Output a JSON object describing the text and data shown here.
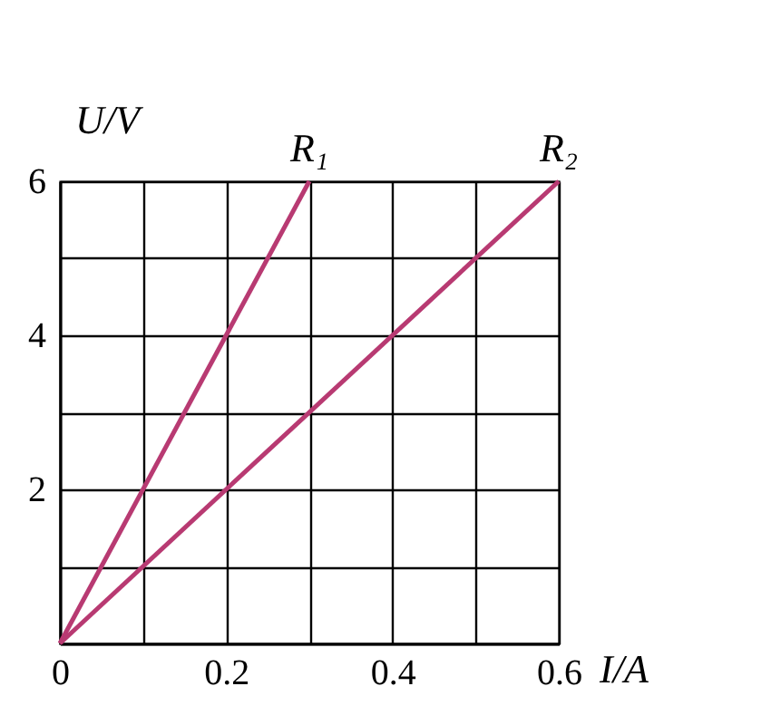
{
  "chart_data": {
    "type": "line",
    "xlabel": "I/A",
    "ylabel": "U/V",
    "series": [
      {
        "name": "R₁",
        "color": "#b83a72",
        "x": [
          0,
          0.3
        ],
        "values": [
          0,
          6
        ]
      },
      {
        "name": "R₂",
        "color": "#b83a72",
        "x": [
          0,
          0.6
        ],
        "values": [
          0,
          6
        ]
      }
    ],
    "xlim": [
      0,
      0.6
    ],
    "ylim": [
      0,
      6
    ],
    "xticks": [
      0,
      {
        "value": 0.1,
        "label": null
      },
      0.2,
      {
        "value": 0.3,
        "label": null
      },
      0.4,
      {
        "value": 0.5,
        "label": null
      },
      0.6
    ],
    "yticks": [
      {
        "value": 0,
        "label": null
      },
      {
        "value": 1,
        "label": null
      },
      2,
      {
        "value": 3,
        "label": null
      },
      4,
      {
        "value": 5,
        "label": null
      },
      6
    ],
    "grid": true,
    "marker": "none",
    "line_style": "solid"
  }
}
